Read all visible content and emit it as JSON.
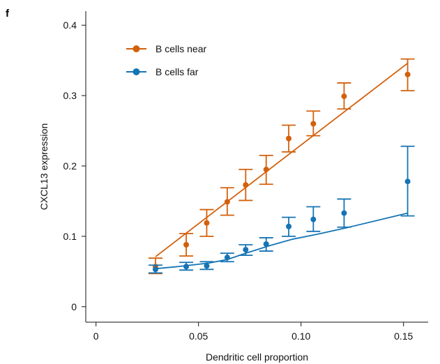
{
  "panel_letter": "f",
  "colors": {
    "near": "#d3600c",
    "far": "#1574b4",
    "axis": "#111111"
  },
  "chart_data": {
    "type": "scatter",
    "title": "",
    "xlabel": "Dendritic cell proportion",
    "ylabel": "CXCL13 expression",
    "xlim": [
      -0.005,
      0.162
    ],
    "ylim": [
      -0.022,
      0.42
    ],
    "x_ticks": [
      0,
      0.05,
      0.1,
      0.15
    ],
    "x_tick_labels": [
      "0",
      "0.05",
      "0.10",
      "0.15"
    ],
    "y_ticks": [
      0,
      0.1,
      0.2,
      0.3,
      0.4
    ],
    "y_tick_labels": [
      "0",
      "0.1",
      "0.2",
      "0.3",
      "0.4"
    ],
    "grid": false,
    "legend_position": "top-left",
    "series": [
      {
        "name": "B cells near",
        "color": "#d3600c",
        "x": [
          0.029,
          0.044,
          0.054,
          0.064,
          0.073,
          0.083,
          0.094,
          0.106,
          0.121,
          0.152
        ],
        "y": [
          0.057,
          0.088,
          0.119,
          0.149,
          0.173,
          0.195,
          0.239,
          0.26,
          0.299,
          0.33
        ],
        "err_low": [
          0.047,
          0.072,
          0.1,
          0.13,
          0.151,
          0.174,
          0.22,
          0.243,
          0.281,
          0.307
        ],
        "err_high": [
          0.069,
          0.104,
          0.138,
          0.169,
          0.195,
          0.215,
          0.258,
          0.278,
          0.318,
          0.352
        ],
        "fit_x": [
          0.029,
          0.152
        ],
        "fit_y": [
          0.071,
          0.346
        ]
      },
      {
        "name": "B cells far",
        "color": "#1574b4",
        "x": [
          0.029,
          0.044,
          0.054,
          0.064,
          0.073,
          0.083,
          0.094,
          0.106,
          0.121,
          0.152
        ],
        "y": [
          0.053,
          0.057,
          0.058,
          0.07,
          0.081,
          0.089,
          0.114,
          0.124,
          0.133,
          0.178
        ],
        "err_low": [
          0.048,
          0.052,
          0.053,
          0.064,
          0.073,
          0.079,
          0.1,
          0.107,
          0.113,
          0.129
        ],
        "err_high": [
          0.059,
          0.063,
          0.064,
          0.076,
          0.088,
          0.098,
          0.127,
          0.142,
          0.153,
          0.228
        ],
        "fit_x": [
          0.029,
          0.04,
          0.055,
          0.064,
          0.073,
          0.085,
          0.096,
          0.108,
          0.122,
          0.152
        ],
        "fit_y": [
          0.054,
          0.057,
          0.062,
          0.067,
          0.076,
          0.087,
          0.096,
          0.103,
          0.112,
          0.133
        ]
      }
    ]
  }
}
